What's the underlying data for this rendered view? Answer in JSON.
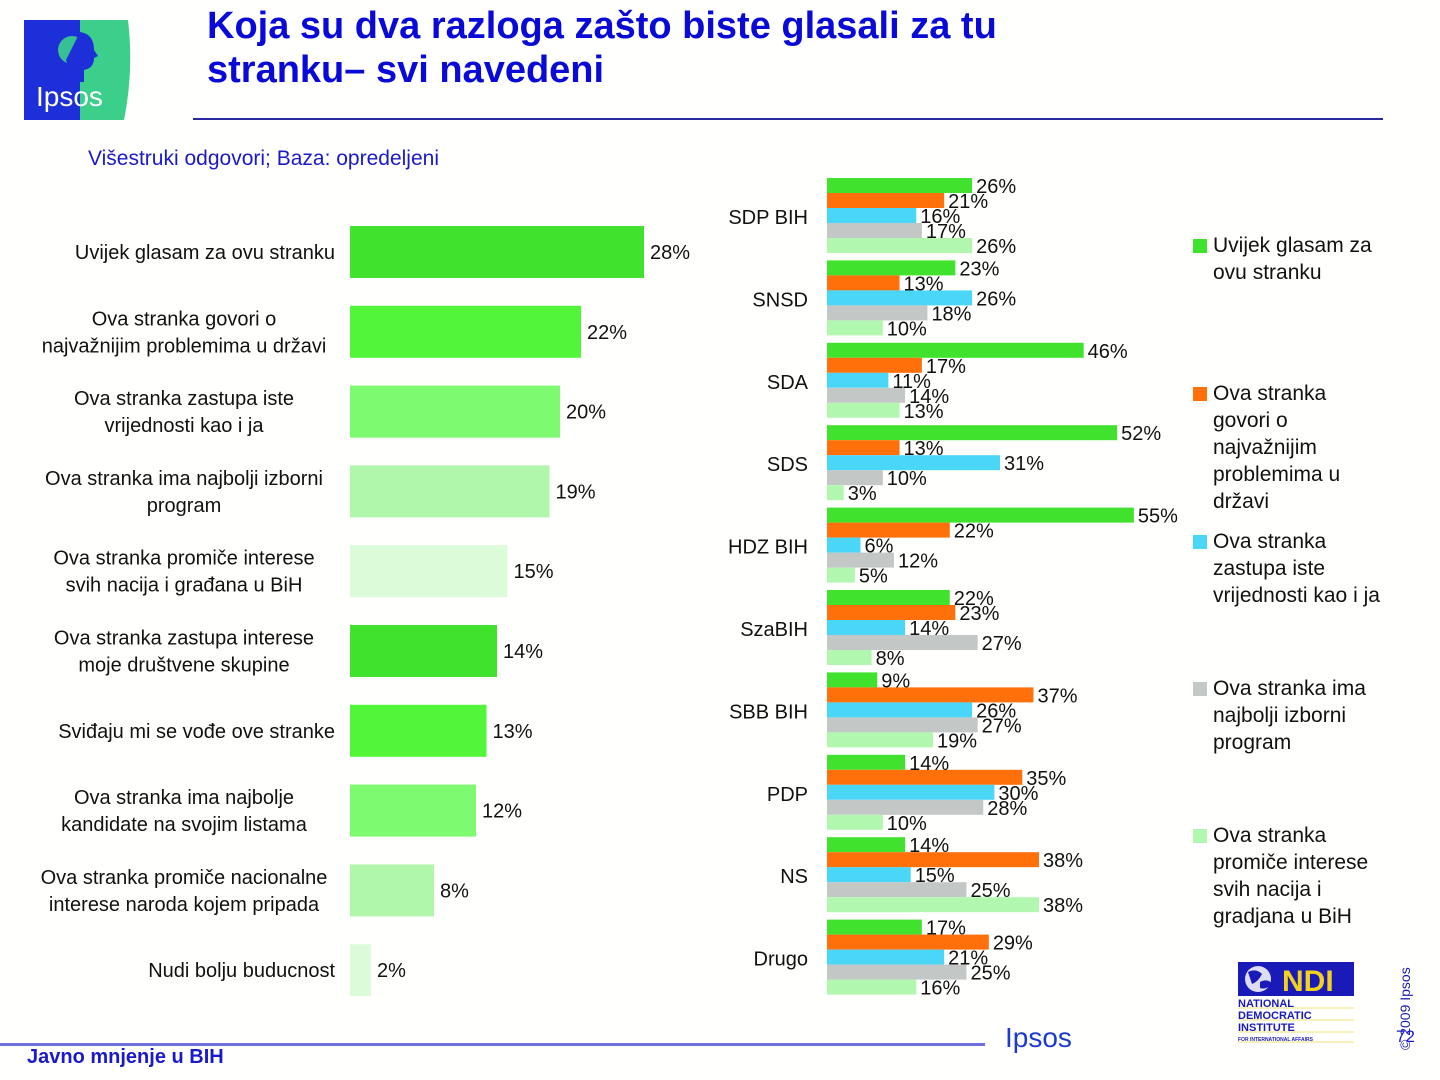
{
  "header": {
    "title_line1": "Koja su dva razloga zašto biste glasali za tu",
    "title_line2": "stranku– svi navedeni",
    "subtitle": "Višestruki odgovori; Baza: opredeljeni",
    "logo_text": "Ipsos"
  },
  "footer": {
    "left_text": "Javno mnjenje u BIH",
    "brand": "Ipsos",
    "page_number": "72",
    "copyright": "© 2009 Ipsos",
    "ndi": {
      "mark": "NDI",
      "line1": "NATIONAL",
      "line2": "DEMOCRATIC",
      "line3": "INSTITUTE",
      "line4": "FOR INTERNATIONAL AFFAIRS"
    }
  },
  "colors": {
    "title": "#0a0ad8",
    "series": [
      "#41e22e",
      "#ff6f0a",
      "#4ad6f7",
      "#c3c7c6",
      "#b2f7b0"
    ],
    "left_bars": [
      "#41e22e",
      "#52f53a",
      "#7dfa70",
      "#b0f7ab",
      "#dcfcd9",
      "#41e22e",
      "#52f53a",
      "#7dfa70",
      "#b0f7ab",
      "#dcfcd9"
    ]
  },
  "legend": [
    {
      "label": "Uvijek glasam za ovu stranku"
    },
    {
      "label": "Ova stranka govori o najvažnijim problemima u državi"
    },
    {
      "label": "Ova stranka zastupa iste vrijednosti kao i ja"
    },
    {
      "label": "Ova stranka ima najbolji izborni program"
    },
    {
      "label": "Ova stranka promiče interese svih nacija i gradjana u BiH"
    }
  ],
  "chart_data": [
    {
      "type": "bar",
      "orientation": "horizontal",
      "title": "",
      "xlabel": "",
      "ylabel": "",
      "xlim": [
        0,
        30
      ],
      "grid": false,
      "categories": [
        [
          "Uvijek glasam za ovu stranku"
        ],
        [
          "Ova stranka  govori o",
          "najvažnijim problemima u državi"
        ],
        [
          "Ova stranka zastupa iste",
          "vrijednosti kao i ja"
        ],
        [
          "Ova stranka ima najbolji izborni",
          "program"
        ],
        [
          "Ova stranka promiče interese",
          "svih nacija i građana u BiH"
        ],
        [
          "Ova stranka zastupa interese",
          "moje društvene skupine"
        ],
        [
          "Sviđaju mi se vođe ove stranke"
        ],
        [
          "Ova stranka ima najbolje",
          "kandidate na svojim listama"
        ],
        [
          "Ova stranka promiče nacionalne",
          "interese naroda kojem pripada"
        ],
        [
          "Nudi bolju buducnost"
        ]
      ],
      "values": [
        28,
        22,
        20,
        19,
        15,
        14,
        13,
        12,
        8,
        2
      ],
      "value_labels": [
        "28%",
        "22%",
        "20%",
        "19%",
        "15%",
        "14%",
        "13%",
        "12%",
        "8%",
        "2%"
      ]
    },
    {
      "type": "bar",
      "orientation": "horizontal",
      "title": "",
      "xlabel": "",
      "ylabel": "",
      "xlim": [
        0,
        60
      ],
      "grid": false,
      "legend_position": "right",
      "categories": [
        "SDP BIH",
        "SNSD",
        "SDA",
        "SDS",
        "HDZ BIH",
        "SzaBIH",
        "SBB BIH",
        "PDP",
        "NS",
        "Drugo"
      ],
      "series": [
        {
          "name": "Uvijek glasam za ovu stranku",
          "values": [
            26,
            23,
            46,
            52,
            55,
            22,
            9,
            14,
            14,
            17
          ]
        },
        {
          "name": "Ova stranka govori o najvažnijim problemima u državi",
          "values": [
            21,
            13,
            17,
            13,
            22,
            23,
            37,
            35,
            38,
            29
          ]
        },
        {
          "name": "Ova stranka zastupa iste vrijednosti kao i ja",
          "values": [
            16,
            26,
            11,
            31,
            6,
            14,
            26,
            30,
            15,
            21
          ]
        },
        {
          "name": "Ova stranka ima najbolji izborni program",
          "values": [
            17,
            18,
            14,
            10,
            12,
            27,
            27,
            28,
            25,
            25
          ]
        },
        {
          "name": "Ova stranka promiče interese svih nacija i gradjana u BiH",
          "values": [
            26,
            10,
            13,
            3,
            5,
            8,
            19,
            10,
            38,
            16
          ]
        }
      ],
      "value_suffix": "%"
    }
  ]
}
